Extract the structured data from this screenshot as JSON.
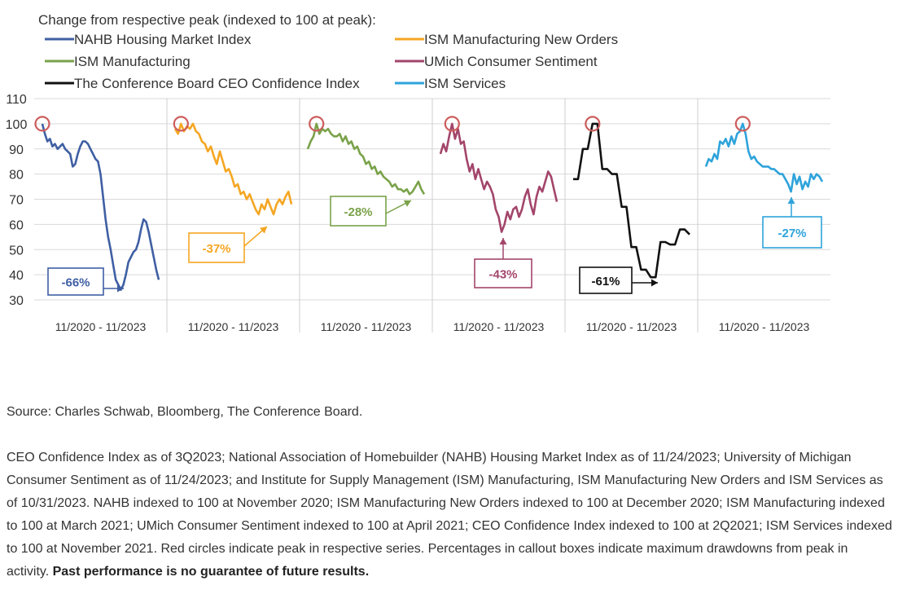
{
  "chart_data": {
    "type": "line",
    "title": "Change from respective peak (indexed to 100 at peak):",
    "ylim": [
      30,
      110
    ],
    "yticks": [
      110,
      100,
      90,
      80,
      70,
      60,
      50,
      40,
      30
    ],
    "grid": true,
    "legend_position": "top",
    "panels": [
      {
        "name": "NAHB Housing Market Index",
        "color": "#3f5fa3",
        "x_range_label": "11/2020 - 11/2023",
        "drawdown_label": "-66%",
        "values": [
          100,
          96,
          93,
          94,
          91,
          92,
          90,
          91,
          92,
          90,
          89,
          88,
          83,
          84,
          88,
          91,
          93,
          93,
          92,
          90,
          88,
          86,
          85,
          80,
          71,
          62,
          55,
          50,
          44,
          38,
          36,
          34,
          36,
          40,
          45,
          47,
          49,
          50,
          53,
          58,
          62,
          61,
          57,
          52,
          47,
          42,
          38
        ]
      },
      {
        "name": "ISM Manufacturing New Orders",
        "color": "#f5a623",
        "x_range_label": "11/2020 - 11/2023",
        "drawdown_label": "-37%",
        "values": [
          98,
          96,
          100,
          97,
          99,
          98,
          100,
          97,
          96,
          93,
          92,
          89,
          91,
          87,
          84,
          89,
          85,
          81,
          82,
          79,
          75,
          76,
          72,
          73,
          70,
          72,
          69,
          66,
          64,
          68,
          66,
          70,
          67,
          64,
          68,
          70,
          68,
          71,
          73,
          68
        ]
      },
      {
        "name": "ISM Manufacturing",
        "color": "#7aa24a",
        "x_range_label": "11/2020 - 11/2023",
        "drawdown_label": "-28%",
        "values": [
          90,
          93,
          95,
          100,
          96,
          98,
          97,
          98,
          96,
          95,
          95,
          96,
          93,
          95,
          92,
          93,
          90,
          91,
          88,
          87,
          84,
          85,
          82,
          83,
          80,
          81,
          79,
          78,
          77,
          75,
          76,
          74,
          74,
          73,
          74,
          72,
          73,
          75,
          77,
          74,
          72
        ]
      },
      {
        "name": "UMich Consumer Sentiment",
        "color": "#a3456b",
        "x_range_label": "11/2020 - 11/2023",
        "drawdown_label": "-43%",
        "values": [
          88,
          92,
          89,
          95,
          100,
          94,
          98,
          92,
          93,
          86,
          81,
          84,
          78,
          82,
          78,
          74,
          77,
          75,
          72,
          66,
          63,
          57,
          60,
          65,
          62,
          66,
          67,
          63,
          66,
          71,
          74,
          68,
          64,
          71,
          75,
          73,
          77,
          81,
          79,
          74,
          69
        ]
      },
      {
        "name": "The Conference Board CEO Confidence Index",
        "color": "#111111",
        "x_range_label": "11/2020 - 11/2023",
        "drawdown_label": "-61%",
        "values": [
          78,
          78,
          90,
          90,
          100,
          100,
          82,
          82,
          80,
          80,
          67,
          67,
          51,
          51,
          42,
          42,
          39,
          39,
          53,
          53,
          52,
          52,
          58,
          58,
          56
        ]
      },
      {
        "name": "ISM Services",
        "color": "#2ea3db",
        "x_range_label": "11/2020 - 11/2023",
        "drawdown_label": "-27%",
        "values": [
          83,
          86,
          85,
          88,
          86,
          93,
          92,
          94,
          91,
          95,
          92,
          96,
          97,
          100,
          96,
          89,
          86,
          87,
          85,
          84,
          83,
          83,
          83,
          82,
          82,
          81,
          80,
          80,
          78,
          76,
          73,
          80,
          76,
          79,
          74,
          77,
          75,
          80,
          78,
          80,
          79,
          77
        ]
      }
    ]
  },
  "source_text": "Source: Charles Schwab, Bloomberg, The Conference Board.",
  "notes_text": "CEO Confidence Index as of 3Q2023; National Association of Homebuilder (NAHB) Housing Market Index as of 11/24/2023; University of Michigan Consumer Sentiment as of 11/24/2023; and Institute for Supply Management (ISM) Manufacturing, ISM Manufacturing New Orders and ISM Services as of 10/31/2023. NAHB indexed to 100 at November 2020; ISM Manufacturing New Orders indexed to 100 at December 2020; ISM Manufacturing indexed to 100 at March 2021; UMich Consumer Sentiment indexed to 100 at April 2021; CEO Confidence Index indexed to 100 at 2Q2021; ISM Services indexed to 100 at November 2021. Red circles indicate peak in respective series. Percentages in callout boxes indicate maximum drawdowns from peak in activity.",
  "disclaimer_text": "Past performance is no guarantee of future results."
}
